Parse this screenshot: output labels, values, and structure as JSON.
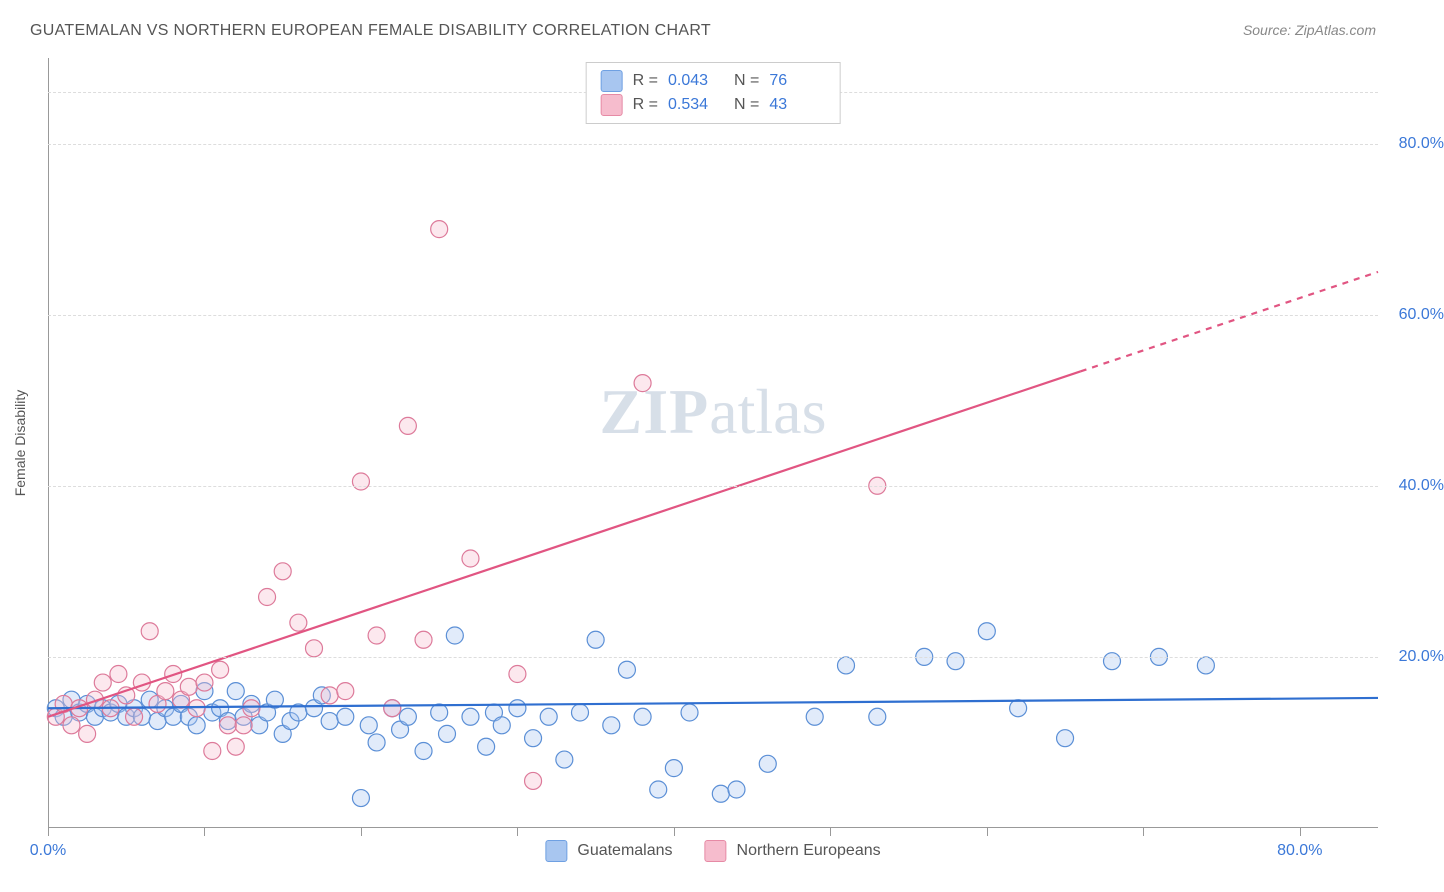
{
  "title": "GUATEMALAN VS NORTHERN EUROPEAN FEMALE DISABILITY CORRELATION CHART",
  "source": "Source: ZipAtlas.com",
  "watermark": {
    "part1": "ZIP",
    "part2": "atlas"
  },
  "ylabel": "Female Disability",
  "axes": {
    "xlim": [
      0,
      85
    ],
    "ylim": [
      0,
      90
    ],
    "x_ticks": [
      0,
      10,
      20,
      30,
      40,
      50,
      60,
      70,
      80
    ],
    "y_gridlines": [
      20,
      40,
      60,
      80,
      86
    ],
    "y_tick_labels": [
      {
        "v": 20,
        "label": "20.0%"
      },
      {
        "v": 40,
        "label": "40.0%"
      },
      {
        "v": 60,
        "label": "60.0%"
      },
      {
        "v": 80,
        "label": "80.0%"
      }
    ],
    "x_tick_labels": [
      {
        "v": 0,
        "label": "0.0%"
      },
      {
        "v": 80,
        "label": "80.0%"
      }
    ],
    "grid_color": "#dddddd",
    "axis_color": "#999999",
    "tick_label_color": "#3b78d8"
  },
  "legend_top": {
    "rows": [
      {
        "swatch_fill": "#a8c6f0",
        "swatch_stroke": "#6fa0e2",
        "r_label": "R =",
        "r_value": "0.043",
        "n_label": "N =",
        "n_value": "76"
      },
      {
        "swatch_fill": "#f6bccd",
        "swatch_stroke": "#e68aa5",
        "r_label": "R =",
        "r_value": "0.534",
        "n_label": "N =",
        "n_value": "43"
      }
    ]
  },
  "legend_bottom": {
    "items": [
      {
        "swatch_fill": "#a8c6f0",
        "swatch_stroke": "#6fa0e2",
        "label": "Guatemalans"
      },
      {
        "swatch_fill": "#f6bccd",
        "swatch_stroke": "#e68aa5",
        "label": "Northern Europeans"
      }
    ]
  },
  "series": [
    {
      "name": "Guatemalans",
      "color_fill": "#a8c6f0",
      "color_stroke": "#5b8fd6",
      "marker_radius": 8.5,
      "trend": {
        "x1": 0,
        "y1": 14.0,
        "x2": 85,
        "y2": 15.2,
        "color": "#2f6fd0",
        "width": 2.2,
        "dash_from_x": null
      },
      "points": [
        [
          0.5,
          14
        ],
        [
          1,
          13
        ],
        [
          1.5,
          15
        ],
        [
          2,
          13.5
        ],
        [
          2.5,
          14.5
        ],
        [
          3,
          13
        ],
        [
          3.5,
          14
        ],
        [
          4,
          13.5
        ],
        [
          4.5,
          14.5
        ],
        [
          5,
          13
        ],
        [
          5.5,
          14
        ],
        [
          6,
          13
        ],
        [
          6.5,
          15
        ],
        [
          7,
          12.5
        ],
        [
          7.5,
          14
        ],
        [
          8,
          13
        ],
        [
          8.5,
          14.5
        ],
        [
          9,
          13
        ],
        [
          9.5,
          12
        ],
        [
          10,
          16
        ],
        [
          10.5,
          13.5
        ],
        [
          11,
          14
        ],
        [
          11.5,
          12.5
        ],
        [
          12,
          16
        ],
        [
          12.5,
          13
        ],
        [
          13,
          14.5
        ],
        [
          13.5,
          12
        ],
        [
          14,
          13.5
        ],
        [
          14.5,
          15
        ],
        [
          15,
          11
        ],
        [
          15.5,
          12.5
        ],
        [
          16,
          13.5
        ],
        [
          17,
          14
        ],
        [
          17.5,
          15.5
        ],
        [
          18,
          12.5
        ],
        [
          19,
          13
        ],
        [
          20,
          3.5
        ],
        [
          20.5,
          12
        ],
        [
          21,
          10
        ],
        [
          22,
          14
        ],
        [
          22.5,
          11.5
        ],
        [
          23,
          13
        ],
        [
          24,
          9
        ],
        [
          25,
          13.5
        ],
        [
          25.5,
          11
        ],
        [
          26,
          22.5
        ],
        [
          27,
          13
        ],
        [
          28,
          9.5
        ],
        [
          28.5,
          13.5
        ],
        [
          29,
          12
        ],
        [
          30,
          14
        ],
        [
          31,
          10.5
        ],
        [
          32,
          13
        ],
        [
          33,
          8
        ],
        [
          34,
          13.5
        ],
        [
          35,
          22
        ],
        [
          36,
          12
        ],
        [
          37,
          18.5
        ],
        [
          38,
          13
        ],
        [
          39,
          4.5
        ],
        [
          40,
          7
        ],
        [
          41,
          13.5
        ],
        [
          43,
          4
        ],
        [
          44,
          4.5
        ],
        [
          46,
          7.5
        ],
        [
          49,
          13
        ],
        [
          51,
          19
        ],
        [
          53,
          13
        ],
        [
          56,
          20
        ],
        [
          58,
          19.5
        ],
        [
          60,
          23
        ],
        [
          62,
          14
        ],
        [
          65,
          10.5
        ],
        [
          68,
          19.5
        ],
        [
          71,
          20
        ],
        [
          74,
          19
        ]
      ]
    },
    {
      "name": "Northern Europeans",
      "color_fill": "#f6bccd",
      "color_stroke": "#dd7a9a",
      "marker_radius": 8.5,
      "trend": {
        "x1": 0,
        "y1": 13.0,
        "x2": 85,
        "y2": 65.0,
        "color": "#e15582",
        "width": 2.2,
        "dash_from_x": 66
      },
      "points": [
        [
          0.5,
          13
        ],
        [
          1,
          14.5
        ],
        [
          1.5,
          12
        ],
        [
          2,
          14
        ],
        [
          2.5,
          11
        ],
        [
          3,
          15
        ],
        [
          3.5,
          17
        ],
        [
          4,
          14
        ],
        [
          4.5,
          18
        ],
        [
          5,
          15.5
        ],
        [
          5.5,
          13
        ],
        [
          6,
          17
        ],
        [
          6.5,
          23
        ],
        [
          7,
          14.5
        ],
        [
          7.5,
          16
        ],
        [
          8,
          18
        ],
        [
          8.5,
          15
        ],
        [
          9,
          16.5
        ],
        [
          9.5,
          14
        ],
        [
          10,
          17
        ],
        [
          10.5,
          9
        ],
        [
          11,
          18.5
        ],
        [
          11.5,
          12
        ],
        [
          12,
          9.5
        ],
        [
          12.5,
          12
        ],
        [
          13,
          14
        ],
        [
          14,
          27
        ],
        [
          15,
          30
        ],
        [
          16,
          24
        ],
        [
          17,
          21
        ],
        [
          18,
          15.5
        ],
        [
          19,
          16
        ],
        [
          20,
          40.5
        ],
        [
          21,
          22.5
        ],
        [
          22,
          14
        ],
        [
          23,
          47
        ],
        [
          24,
          22
        ],
        [
          25,
          70
        ],
        [
          27,
          31.5
        ],
        [
          30,
          18
        ],
        [
          31,
          5.5
        ],
        [
          38,
          52
        ],
        [
          53,
          40
        ]
      ]
    }
  ]
}
